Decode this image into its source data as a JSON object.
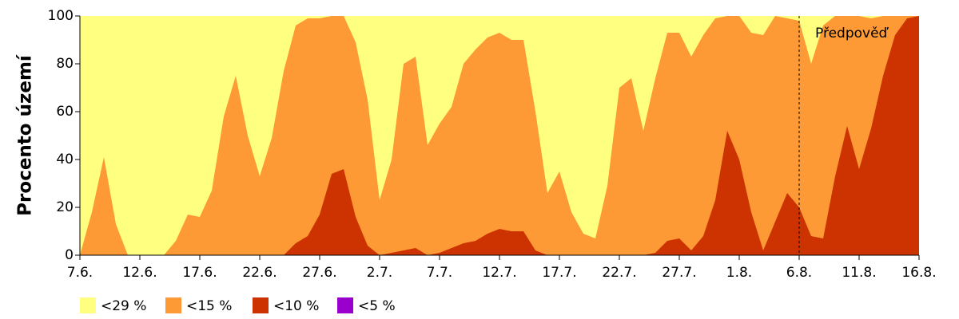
{
  "chart_data": {
    "type": "area",
    "y_label": "Procento území",
    "annotation": "Předpověď",
    "categories": [
      "7.6.",
      null,
      null,
      null,
      null,
      "12.6.",
      null,
      null,
      null,
      null,
      "17.6.",
      null,
      null,
      null,
      null,
      "22.6.",
      null,
      null,
      null,
      null,
      "27.6.",
      null,
      null,
      null,
      null,
      "2.7.",
      null,
      null,
      null,
      null,
      "7.7.",
      null,
      null,
      null,
      null,
      "12.7.",
      null,
      null,
      null,
      null,
      "17.7.",
      null,
      null,
      null,
      null,
      "22.7.",
      null,
      null,
      null,
      null,
      "27.7.",
      null,
      null,
      null,
      null,
      "1.8.",
      null,
      null,
      null,
      null,
      "6.8.",
      null,
      null,
      null,
      null,
      "11.8.",
      null,
      null,
      null,
      null,
      "16.8."
    ],
    "series": [
      {
        "name": "<29 %",
        "color": "#ffff80",
        "values": [
          100,
          100,
          100,
          100,
          100,
          100,
          100,
          100,
          100,
          100,
          100,
          100,
          100,
          100,
          100,
          100,
          100,
          100,
          100,
          100,
          100,
          100,
          100,
          100,
          100,
          100,
          100,
          100,
          100,
          100,
          100,
          100,
          100,
          100,
          100,
          100,
          100,
          100,
          100,
          100,
          100,
          100,
          100,
          100,
          100,
          100,
          100,
          100,
          100,
          100,
          100,
          100,
          100,
          100,
          100,
          100,
          100,
          100,
          100,
          100,
          100,
          100,
          100,
          100,
          100,
          100,
          100,
          100,
          100,
          100,
          100
        ]
      },
      {
        "name": "<15 %",
        "color": "#fd9a35",
        "values": [
          0,
          18,
          41,
          13,
          0,
          0,
          0,
          0,
          6,
          17,
          16,
          27,
          58,
          75,
          50,
          33,
          49,
          77,
          96,
          99,
          99,
          100,
          100,
          89,
          65,
          23,
          40,
          80,
          83,
          46,
          55,
          62,
          80,
          86,
          91,
          93,
          90,
          90,
          60,
          26,
          35,
          18,
          9,
          7,
          29,
          70,
          74,
          52,
          74,
          93,
          93,
          83,
          92,
          99,
          100,
          100,
          93,
          92,
          100,
          99,
          98,
          80,
          96,
          100,
          100,
          100,
          99,
          100,
          100,
          100,
          100
        ]
      },
      {
        "name": "<10 %",
        "color": "#cc3300",
        "values": [
          0,
          0,
          0,
          0,
          0,
          0,
          0,
          0,
          0,
          0,
          0,
          0,
          0,
          0,
          0,
          0,
          0,
          0,
          5,
          8,
          17,
          34,
          36,
          16,
          4,
          0,
          1,
          2,
          3,
          0,
          1,
          3,
          5,
          6,
          9,
          11,
          10,
          10,
          2,
          0,
          0,
          0,
          0,
          0,
          0,
          0,
          0,
          0,
          1,
          6,
          7,
          2,
          8,
          23,
          52,
          40,
          18,
          2,
          14,
          26,
          20,
          8,
          7,
          33,
          54,
          36,
          53,
          75,
          92,
          99,
          100
        ]
      },
      {
        "name": "<5 %",
        "color": "#9900cc",
        "values": [
          0,
          0,
          0,
          0,
          0,
          0,
          0,
          0,
          0,
          0,
          0,
          0,
          0,
          0,
          0,
          0,
          0,
          0,
          0,
          0,
          0,
          0,
          0,
          0,
          0,
          0,
          0,
          0,
          0,
          0,
          0,
          0,
          0,
          0,
          0,
          0,
          0,
          0,
          0,
          0,
          0,
          0,
          0,
          0,
          0,
          0,
          0,
          0,
          0,
          0,
          0,
          0,
          0,
          0,
          0,
          0,
          0,
          0,
          0,
          0,
          0,
          0,
          0,
          0,
          0,
          0,
          0,
          0,
          0,
          0,
          0
        ]
      }
    ],
    "ylim": [
      0,
      100
    ],
    "yticks": [
      0,
      20,
      40,
      60,
      80,
      100
    ],
    "grid": false
  }
}
